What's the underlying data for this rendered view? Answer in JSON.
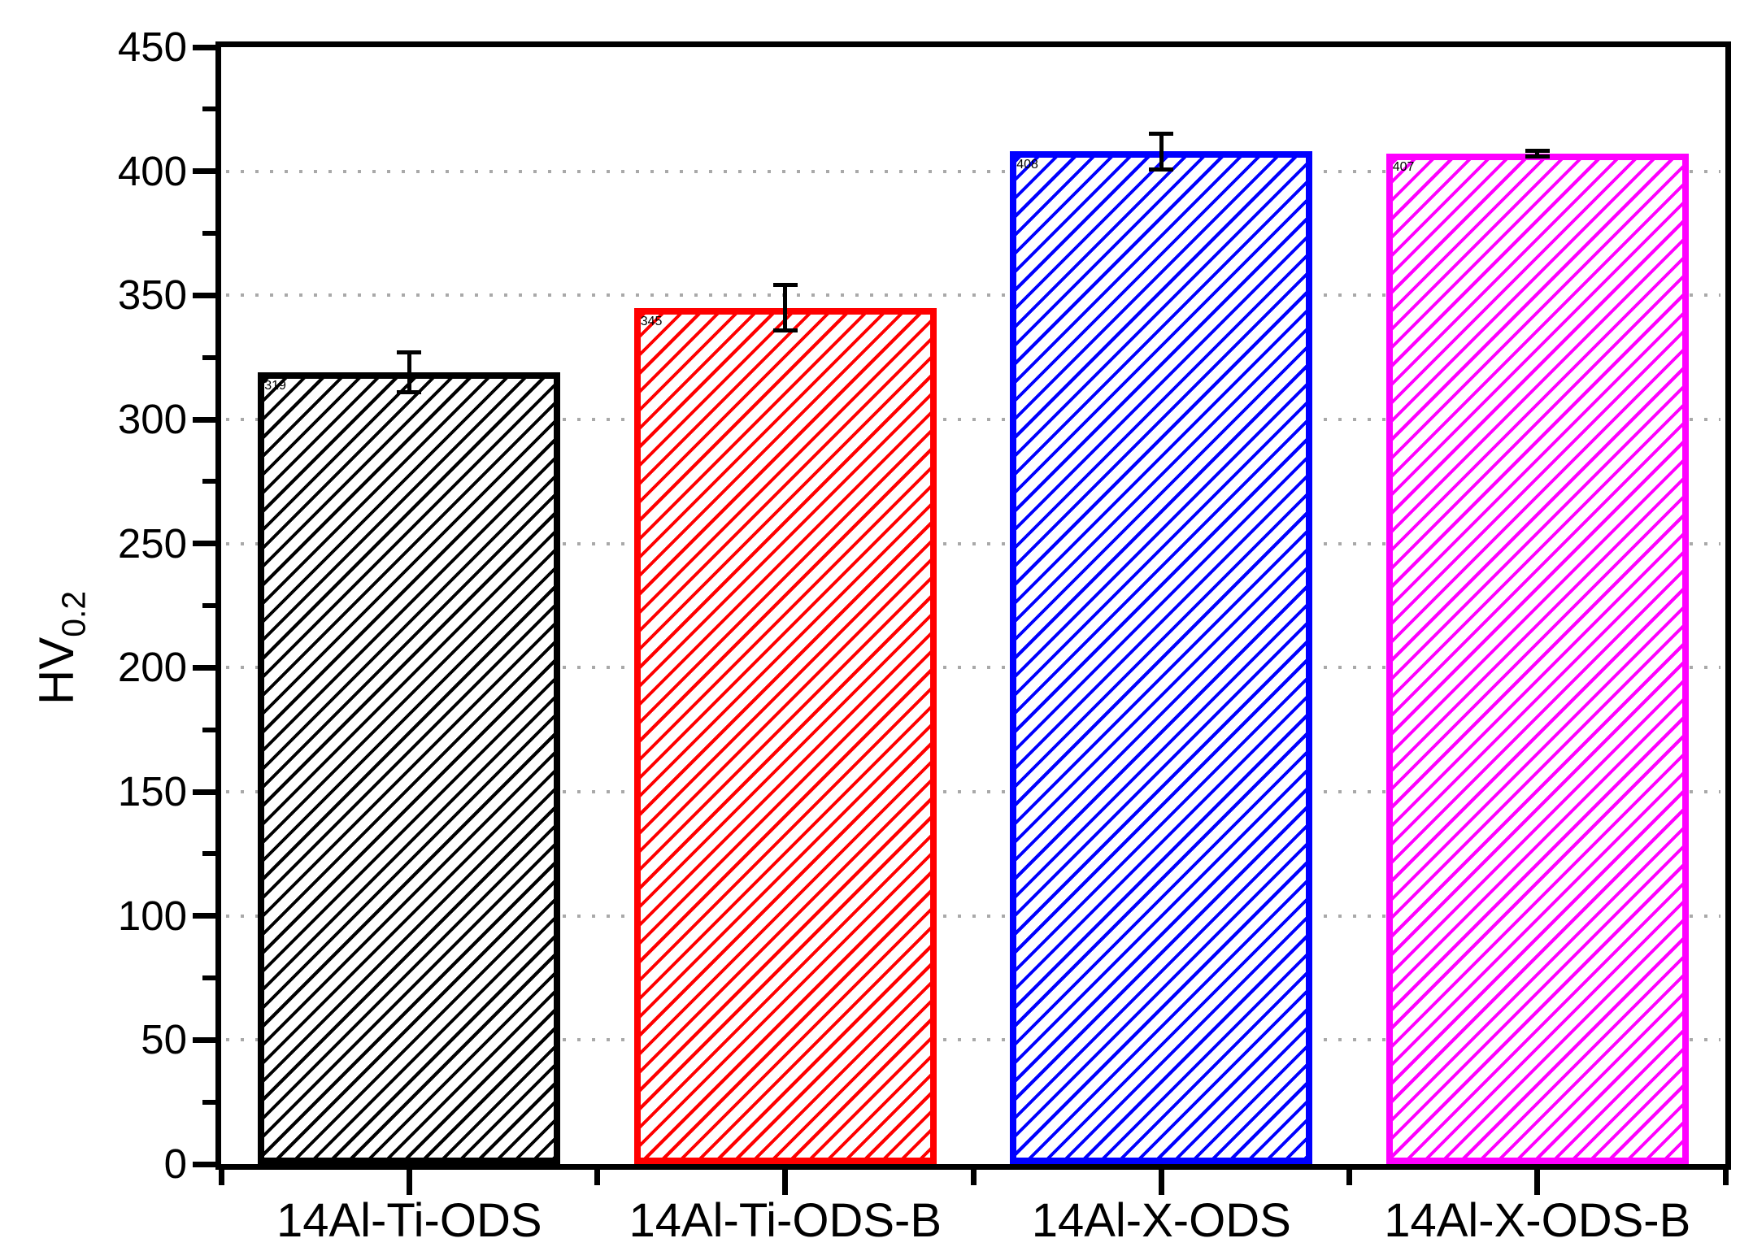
{
  "chart_data": {
    "type": "bar",
    "title": "",
    "ylabel_main": "HV",
    "ylabel_sub": "0.2",
    "xlabel": "",
    "categories": [
      "14Al-Ti-ODS",
      "14Al-Ti-ODS-B",
      "14Al-X-ODS",
      "14Al-X-ODS-B"
    ],
    "values": [
      319,
      345,
      408,
      407
    ],
    "errors": [
      9,
      10,
      8,
      2
    ],
    "bar_edge_colors": [
      "#000000",
      "#ff0000",
      "#0000ff",
      "#ff00ff"
    ],
    "bar_fill_color": "#ffffff",
    "hatch_style": "diagonal-forward-slash",
    "error_bar_color": "#000000",
    "ylim": [
      0,
      450
    ],
    "ytick_step": 50,
    "ytick_minor_step": 25,
    "ytick_labels": [
      "0",
      "50",
      "100",
      "150",
      "200",
      "250",
      "300",
      "350",
      "400",
      "450"
    ],
    "gridline_values": [
      50,
      100,
      150,
      200,
      250,
      300,
      350,
      400
    ],
    "grid_style": "dotted-horizontal",
    "grid_color": "#a9a9a9",
    "frame": "full-box",
    "legend": "none"
  }
}
